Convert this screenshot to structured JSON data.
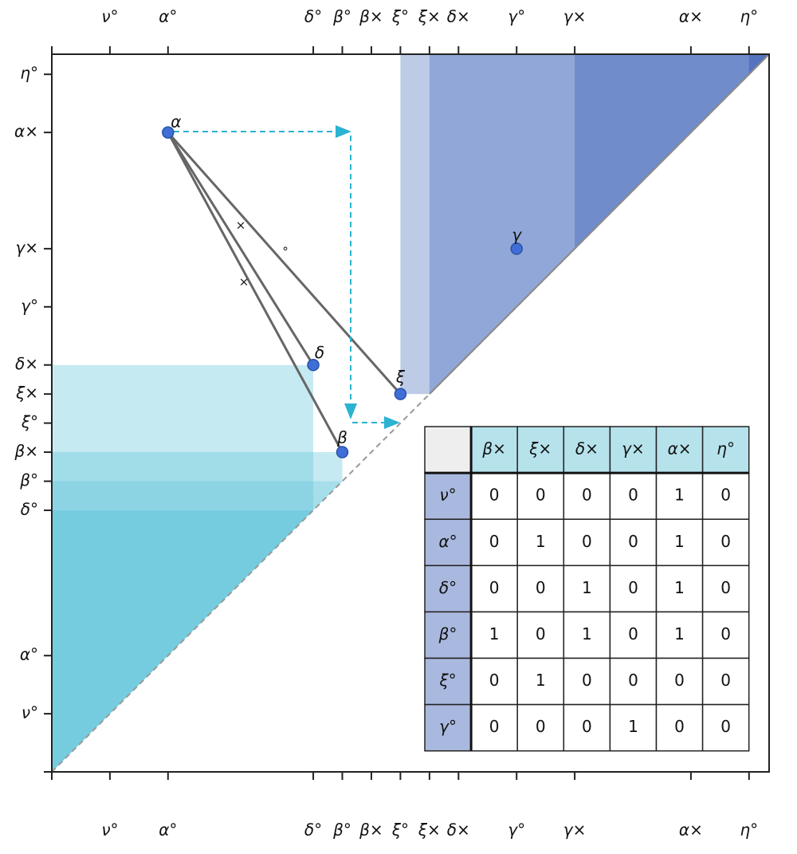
{
  "axis_labels": [
    "ν°",
    "α°",
    "δ°",
    "β°",
    "β×",
    "ξ°",
    "ξ×",
    "δ×",
    "γ°",
    "γ×",
    "α×",
    "η°"
  ],
  "points": [
    {
      "label": "α"
    },
    {
      "label": "γ"
    },
    {
      "label": "δ"
    },
    {
      "label": "ξ"
    },
    {
      "label": "β"
    }
  ],
  "annotations": [
    "×",
    "×",
    "°"
  ],
  "table": {
    "header": [
      "β×",
      "ξ×",
      "δ×",
      "γ×",
      "α×",
      "η°"
    ],
    "rows": [
      {
        "label": "ν°",
        "cells": [
          0,
          0,
          0,
          0,
          1,
          0
        ]
      },
      {
        "label": "α°",
        "cells": [
          0,
          1,
          0,
          0,
          1,
          0
        ]
      },
      {
        "label": "δ°",
        "cells": [
          0,
          0,
          1,
          0,
          1,
          0
        ]
      },
      {
        "label": "β°",
        "cells": [
          1,
          0,
          1,
          0,
          1,
          0
        ]
      },
      {
        "label": "ξ°",
        "cells": [
          0,
          1,
          0,
          0,
          0,
          0
        ]
      },
      {
        "label": "γ°",
        "cells": [
          0,
          0,
          0,
          1,
          0,
          0
        ]
      }
    ]
  }
}
